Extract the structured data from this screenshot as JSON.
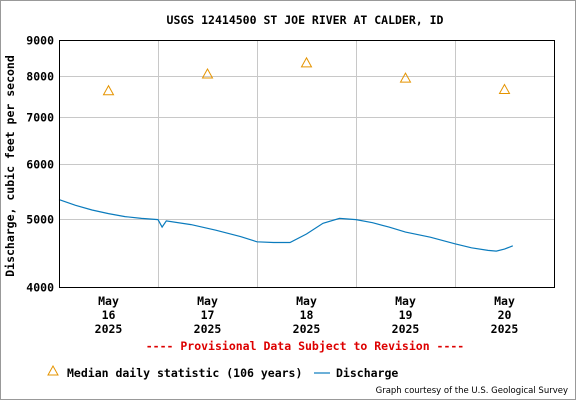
{
  "colors": {
    "discharge": "#0a7bbd",
    "median": "#e59400",
    "grid": "#c8c8c8",
    "provisional": "#dd0000"
  },
  "chart_data": {
    "type": "line",
    "title": "USGS 12414500 ST JOE RIVER AT CALDER, ID",
    "ylabel": "Discharge, cubic feet per second",
    "xlabel": "",
    "yscale": "log",
    "ylim": [
      4000,
      9000
    ],
    "y_ticks": [
      "4000",
      "5000",
      "6000",
      "7000",
      "8000",
      "9000"
    ],
    "xlim": [
      "2025-05-15T12:00",
      "2025-05-20T12:00"
    ],
    "x_ticks": [
      {
        "month": "May",
        "day": "16",
        "year": "2025"
      },
      {
        "month": "May",
        "day": "17",
        "year": "2025"
      },
      {
        "month": "May",
        "day": "18",
        "year": "2025"
      },
      {
        "month": "May",
        "day": "19",
        "year": "2025"
      },
      {
        "month": "May",
        "day": "20",
        "year": "2025"
      }
    ],
    "grid": true,
    "provisional_notice": "---- Provisional Data Subject to Revision ----",
    "series": [
      {
        "name": "Median daily statistic (106 years)",
        "marker": "triangle",
        "points": [
          {
            "x": "2025-05-16T00:00",
            "y": 7620
          },
          {
            "x": "2025-05-17T00:00",
            "y": 8050
          },
          {
            "x": "2025-05-18T00:00",
            "y": 8350
          },
          {
            "x": "2025-05-19T00:00",
            "y": 7940
          },
          {
            "x": "2025-05-20T00:00",
            "y": 7650
          }
        ]
      },
      {
        "name": "Discharge",
        "marker": "line",
        "points": [
          {
            "x": "2025-05-15T12:00",
            "y": 5330
          },
          {
            "x": "2025-05-15T16:00",
            "y": 5230
          },
          {
            "x": "2025-05-15T20:00",
            "y": 5150
          },
          {
            "x": "2025-05-16T00:00",
            "y": 5090
          },
          {
            "x": "2025-05-16T04:00",
            "y": 5040
          },
          {
            "x": "2025-05-16T08:00",
            "y": 5010
          },
          {
            "x": "2025-05-16T12:00",
            "y": 4990
          },
          {
            "x": "2025-05-16T13:00",
            "y": 4870
          },
          {
            "x": "2025-05-16T14:00",
            "y": 4970
          },
          {
            "x": "2025-05-16T20:00",
            "y": 4910
          },
          {
            "x": "2025-05-17T02:00",
            "y": 4820
          },
          {
            "x": "2025-05-17T08:00",
            "y": 4720
          },
          {
            "x": "2025-05-17T12:00",
            "y": 4640
          },
          {
            "x": "2025-05-17T16:00",
            "y": 4630
          },
          {
            "x": "2025-05-17T20:00",
            "y": 4630
          },
          {
            "x": "2025-05-18T00:00",
            "y": 4760
          },
          {
            "x": "2025-05-18T04:00",
            "y": 4930
          },
          {
            "x": "2025-05-18T08:00",
            "y": 5010
          },
          {
            "x": "2025-05-18T12:00",
            "y": 4990
          },
          {
            "x": "2025-05-18T16:00",
            "y": 4940
          },
          {
            "x": "2025-05-18T20:00",
            "y": 4870
          },
          {
            "x": "2025-05-19T00:00",
            "y": 4790
          },
          {
            "x": "2025-05-19T06:00",
            "y": 4710
          },
          {
            "x": "2025-05-19T12:00",
            "y": 4610
          },
          {
            "x": "2025-05-19T16:00",
            "y": 4550
          },
          {
            "x": "2025-05-19T20:00",
            "y": 4510
          },
          {
            "x": "2025-05-19T22:00",
            "y": 4500
          },
          {
            "x": "2025-05-20T00:00",
            "y": 4530
          },
          {
            "x": "2025-05-20T02:00",
            "y": 4580
          }
        ]
      }
    ]
  },
  "credit": "Graph courtesy of the U.S. Geological Survey"
}
